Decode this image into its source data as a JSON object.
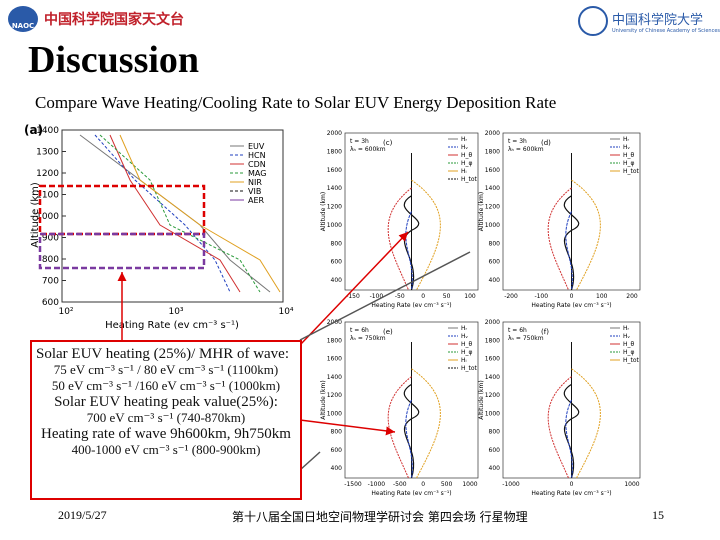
{
  "header": {
    "left_logo": "中国科学院国家天文台",
    "left_logo_sub": "NAOC",
    "right_logo": "中国科学院大学",
    "right_logo_sub": "University of Chinese Academy of Sciences"
  },
  "title": "Discussion",
  "subtitle": "Compare Wave Heating/Cooling Rate to Solar EUV Energy Deposition Rate",
  "figure": {
    "panel_a": {
      "label": "(a)",
      "ylabel": "Altitude (km)",
      "xlabel": "Heating Rate (ev cm⁻³ s⁻¹)",
      "yticks": [
        "1400",
        "1300",
        "1200",
        "1100",
        "1000",
        "900",
        "800",
        "700",
        "600"
      ],
      "xticks": [
        "10²",
        "10³",
        "10⁴"
      ],
      "legend": [
        "EUV",
        "HCN",
        "CDN",
        "MAG",
        "NIR",
        "VIB",
        "AER"
      ]
    },
    "panels": [
      {
        "label": "(c)",
        "params": [
          "t = 3h",
          "λₕ = 600km"
        ],
        "yticks": [
          "2000",
          "1800",
          "1600",
          "1400",
          "1200",
          "1000",
          "800",
          "600",
          "400"
        ],
        "xticks": [
          "-150",
          "-100",
          "-50",
          "0",
          "50",
          "100"
        ],
        "legend": [
          "Hᵣ",
          "Hᵥ",
          "H_θ",
          "H_φ",
          "Hᵢ",
          "H_tot"
        ]
      },
      {
        "label": "(d)",
        "params": [
          "t = 3h",
          "λₕ = 600km"
        ],
        "yticks": [
          "2000",
          "1800",
          "1600",
          "1400",
          "1200",
          "1000",
          "800",
          "600",
          "400"
        ],
        "xticks": [
          "-200",
          "-100",
          "0",
          "100",
          "200"
        ],
        "legend": [
          "Hᵣ",
          "Hᵥ",
          "H_θ",
          "H_φ",
          "H_tot"
        ]
      },
      {
        "label": "(e)",
        "params": [
          "t = 6h",
          "λₕ = 750km"
        ],
        "yticks": [
          "2000",
          "1800",
          "1600",
          "1400",
          "1200",
          "1000",
          "800",
          "600",
          "400"
        ],
        "xticks": [
          "-1500",
          "-1000",
          "-500",
          "0",
          "500",
          "1000"
        ],
        "legend": [
          "Hᵣ",
          "Hᵥ",
          "H_θ",
          "H_φ",
          "Hᵢ",
          "H_tot"
        ]
      },
      {
        "label": "(f)",
        "params": [
          "t = 6h",
          "λₕ = 750km"
        ],
        "yticks": [
          "2000",
          "1800",
          "1600",
          "1400",
          "1200",
          "1000",
          "800",
          "600",
          "400"
        ],
        "xticks": [
          "-1000",
          "0",
          "1000"
        ],
        "legend": [
          "Hᵣ",
          "Hᵥ",
          "H_θ",
          "H_φ",
          "H_tot"
        ]
      }
    ],
    "ylabel": "Altitude (km)",
    "xlabel": "Heating Rate (ev cm⁻³ s⁻¹)"
  },
  "textbox": {
    "lines": [
      "Solar EUV heating (25%)/ MHR of wave:",
      "75 eV cm⁻³ s⁻¹ / 80 eV cm⁻³ s⁻¹ (1100km)",
      "50 eV cm⁻³ s⁻¹ /160 eV cm⁻³ s⁻¹ (1000km)",
      "Solar EUV heating peak value(25%):",
      "700 eV cm⁻³ s⁻¹ (740-870km)",
      "Heating rate of wave 9h600km, 9h750km",
      "400-1000 eV cm⁻³ s⁻¹ (800-900km)"
    ]
  },
  "footer": {
    "date": "2019/5/27",
    "event": "第十八届全国日地空间物理学研讨会 第四会场 行星物理",
    "page": "15"
  }
}
